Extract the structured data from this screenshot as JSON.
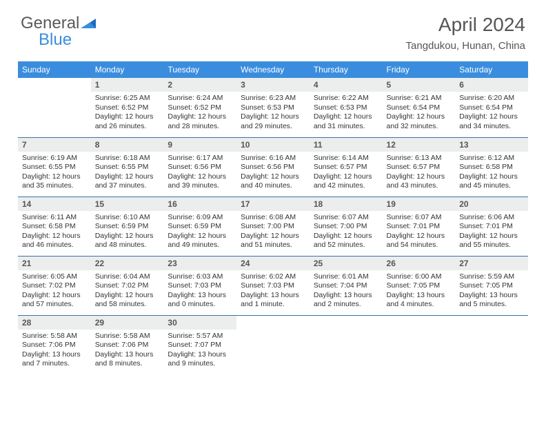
{
  "logo": {
    "text1": "General",
    "text2": "Blue"
  },
  "title": "April 2024",
  "location": "Tangdukou, Hunan, China",
  "colors": {
    "accent": "#3a8dde",
    "headerRow": "#3a8dde",
    "dayNumBg": "#eceded",
    "rowBorder": "#3a72a8"
  },
  "weekdays": [
    "Sunday",
    "Monday",
    "Tuesday",
    "Wednesday",
    "Thursday",
    "Friday",
    "Saturday"
  ],
  "weeks": [
    [
      {
        "n": "",
        "sr": "",
        "ss": "",
        "dl": "",
        "empty": true
      },
      {
        "n": "1",
        "sr": "Sunrise: 6:25 AM",
        "ss": "Sunset: 6:52 PM",
        "dl": "Daylight: 12 hours and 26 minutes."
      },
      {
        "n": "2",
        "sr": "Sunrise: 6:24 AM",
        "ss": "Sunset: 6:52 PM",
        "dl": "Daylight: 12 hours and 28 minutes."
      },
      {
        "n": "3",
        "sr": "Sunrise: 6:23 AM",
        "ss": "Sunset: 6:53 PM",
        "dl": "Daylight: 12 hours and 29 minutes."
      },
      {
        "n": "4",
        "sr": "Sunrise: 6:22 AM",
        "ss": "Sunset: 6:53 PM",
        "dl": "Daylight: 12 hours and 31 minutes."
      },
      {
        "n": "5",
        "sr": "Sunrise: 6:21 AM",
        "ss": "Sunset: 6:54 PM",
        "dl": "Daylight: 12 hours and 32 minutes."
      },
      {
        "n": "6",
        "sr": "Sunrise: 6:20 AM",
        "ss": "Sunset: 6:54 PM",
        "dl": "Daylight: 12 hours and 34 minutes."
      }
    ],
    [
      {
        "n": "7",
        "sr": "Sunrise: 6:19 AM",
        "ss": "Sunset: 6:55 PM",
        "dl": "Daylight: 12 hours and 35 minutes."
      },
      {
        "n": "8",
        "sr": "Sunrise: 6:18 AM",
        "ss": "Sunset: 6:55 PM",
        "dl": "Daylight: 12 hours and 37 minutes."
      },
      {
        "n": "9",
        "sr": "Sunrise: 6:17 AM",
        "ss": "Sunset: 6:56 PM",
        "dl": "Daylight: 12 hours and 39 minutes."
      },
      {
        "n": "10",
        "sr": "Sunrise: 6:16 AM",
        "ss": "Sunset: 6:56 PM",
        "dl": "Daylight: 12 hours and 40 minutes."
      },
      {
        "n": "11",
        "sr": "Sunrise: 6:14 AM",
        "ss": "Sunset: 6:57 PM",
        "dl": "Daylight: 12 hours and 42 minutes."
      },
      {
        "n": "12",
        "sr": "Sunrise: 6:13 AM",
        "ss": "Sunset: 6:57 PM",
        "dl": "Daylight: 12 hours and 43 minutes."
      },
      {
        "n": "13",
        "sr": "Sunrise: 6:12 AM",
        "ss": "Sunset: 6:58 PM",
        "dl": "Daylight: 12 hours and 45 minutes."
      }
    ],
    [
      {
        "n": "14",
        "sr": "Sunrise: 6:11 AM",
        "ss": "Sunset: 6:58 PM",
        "dl": "Daylight: 12 hours and 46 minutes."
      },
      {
        "n": "15",
        "sr": "Sunrise: 6:10 AM",
        "ss": "Sunset: 6:59 PM",
        "dl": "Daylight: 12 hours and 48 minutes."
      },
      {
        "n": "16",
        "sr": "Sunrise: 6:09 AM",
        "ss": "Sunset: 6:59 PM",
        "dl": "Daylight: 12 hours and 49 minutes."
      },
      {
        "n": "17",
        "sr": "Sunrise: 6:08 AM",
        "ss": "Sunset: 7:00 PM",
        "dl": "Daylight: 12 hours and 51 minutes."
      },
      {
        "n": "18",
        "sr": "Sunrise: 6:07 AM",
        "ss": "Sunset: 7:00 PM",
        "dl": "Daylight: 12 hours and 52 minutes."
      },
      {
        "n": "19",
        "sr": "Sunrise: 6:07 AM",
        "ss": "Sunset: 7:01 PM",
        "dl": "Daylight: 12 hours and 54 minutes."
      },
      {
        "n": "20",
        "sr": "Sunrise: 6:06 AM",
        "ss": "Sunset: 7:01 PM",
        "dl": "Daylight: 12 hours and 55 minutes."
      }
    ],
    [
      {
        "n": "21",
        "sr": "Sunrise: 6:05 AM",
        "ss": "Sunset: 7:02 PM",
        "dl": "Daylight: 12 hours and 57 minutes."
      },
      {
        "n": "22",
        "sr": "Sunrise: 6:04 AM",
        "ss": "Sunset: 7:02 PM",
        "dl": "Daylight: 12 hours and 58 minutes."
      },
      {
        "n": "23",
        "sr": "Sunrise: 6:03 AM",
        "ss": "Sunset: 7:03 PM",
        "dl": "Daylight: 13 hours and 0 minutes."
      },
      {
        "n": "24",
        "sr": "Sunrise: 6:02 AM",
        "ss": "Sunset: 7:03 PM",
        "dl": "Daylight: 13 hours and 1 minute."
      },
      {
        "n": "25",
        "sr": "Sunrise: 6:01 AM",
        "ss": "Sunset: 7:04 PM",
        "dl": "Daylight: 13 hours and 2 minutes."
      },
      {
        "n": "26",
        "sr": "Sunrise: 6:00 AM",
        "ss": "Sunset: 7:05 PM",
        "dl": "Daylight: 13 hours and 4 minutes."
      },
      {
        "n": "27",
        "sr": "Sunrise: 5:59 AM",
        "ss": "Sunset: 7:05 PM",
        "dl": "Daylight: 13 hours and 5 minutes."
      }
    ],
    [
      {
        "n": "28",
        "sr": "Sunrise: 5:58 AM",
        "ss": "Sunset: 7:06 PM",
        "dl": "Daylight: 13 hours and 7 minutes."
      },
      {
        "n": "29",
        "sr": "Sunrise: 5:58 AM",
        "ss": "Sunset: 7:06 PM",
        "dl": "Daylight: 13 hours and 8 minutes."
      },
      {
        "n": "30",
        "sr": "Sunrise: 5:57 AM",
        "ss": "Sunset: 7:07 PM",
        "dl": "Daylight: 13 hours and 9 minutes."
      },
      {
        "n": "",
        "sr": "",
        "ss": "",
        "dl": "",
        "empty": true
      },
      {
        "n": "",
        "sr": "",
        "ss": "",
        "dl": "",
        "empty": true
      },
      {
        "n": "",
        "sr": "",
        "ss": "",
        "dl": "",
        "empty": true
      },
      {
        "n": "",
        "sr": "",
        "ss": "",
        "dl": "",
        "empty": true
      }
    ]
  ]
}
